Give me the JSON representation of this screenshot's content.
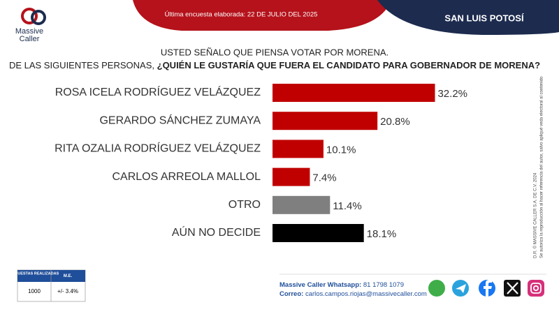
{
  "header": {
    "brand": "Massive",
    "brand2": "Caller",
    "last_survey": "Última encuesta elaborada: 22 DE JULIO DEL 2025",
    "region": "SAN LUIS POTOSÍ"
  },
  "chart_data": {
    "type": "hbar",
    "title": "USTED SEÑALO QUE PIENSA VOTAR POR MORENA.",
    "subtitle": [
      "DE LAS SIGUIENTES PERSONAS,",
      "¿QUIÉN LE GUSTARÍA QUE FUERA EL CANDIDATO PARA GOBERNADOR DE MORENA?"
    ],
    "categories": [
      "ROSA ICELA RODRÍGUEZ VELÁZQUEZ",
      "GERARDO SÁNCHEZ ZUMAYA",
      "RITA OZALIA RODRÍGUEZ VELÁZQUEZ",
      "CARLOS ARREOLA MALLOL",
      "OTRO",
      "AÚN NO DECIDE"
    ],
    "values": [
      32.2,
      20.8,
      10.1,
      7.4,
      11.4,
      18.1
    ],
    "value_labels": [
      "32.2%",
      "20.8%",
      "10.1%",
      "7.4%",
      "11.4%",
      "18.1%"
    ],
    "colors": [
      "#c00000",
      "#c00000",
      "#c00000",
      "#c00000",
      "#7f7f7f",
      "#000000"
    ]
  },
  "side_note": [
    "D.R. © MASSIVE CALLER S.A. DE C.V. 2024",
    "Se autoriza la reproducción al hacer referencia del autor, salvo apliqué veda electoral al contenido"
  ],
  "footer": {
    "table": {
      "headers": [
        "ENCUESTAS REALIZADAS",
        "M.E."
      ],
      "row": [
        "1000",
        "+/- 3.4%"
      ]
    },
    "whatsapp_label": "Massive Caller Whatsapp:",
    "whatsapp": "81 1798 1079",
    "email_label": "Correo:",
    "email": "carlos.campos.riojas@massivecaller.com"
  }
}
